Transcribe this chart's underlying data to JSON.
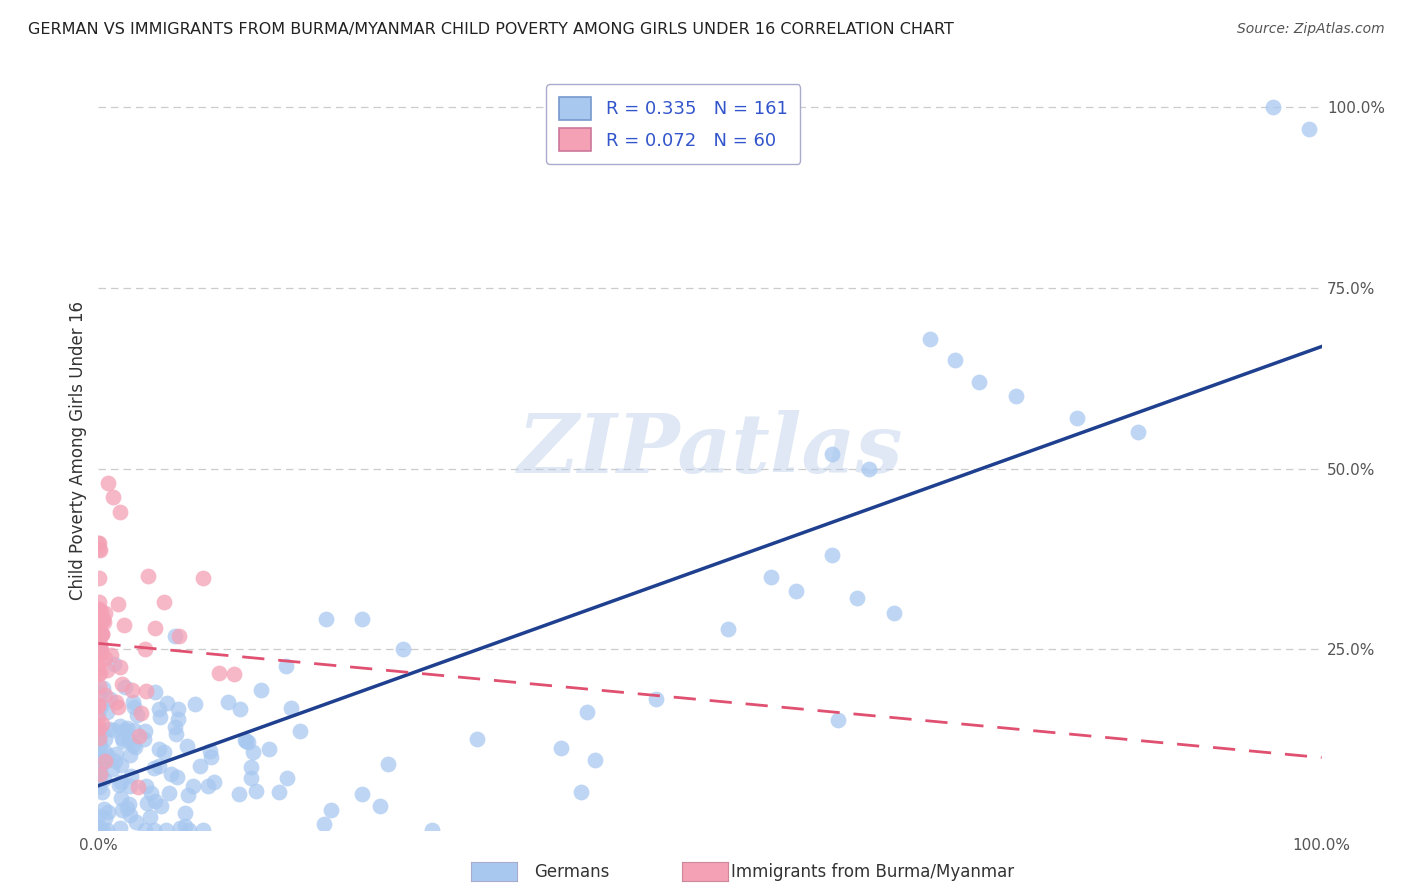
{
  "title": "GERMAN VS IMMIGRANTS FROM BURMA/MYANMAR CHILD POVERTY AMONG GIRLS UNDER 16 CORRELATION CHART",
  "source": "Source: ZipAtlas.com",
  "ylabel": "Child Poverty Among Girls Under 16",
  "series": [
    {
      "name": "Germans",
      "R": 0.335,
      "N": 161,
      "color_scatter": "#a8c8f0",
      "color_line": "#1f3f8f",
      "line_style": "solid"
    },
    {
      "name": "Immigrants from Burma/Myanmar",
      "R": 0.072,
      "N": 60,
      "color_scatter": "#f4a0b5",
      "color_line": "#e05070",
      "line_style": "dashed"
    }
  ],
  "watermark": "ZIPatlas",
  "background_color": "#ffffff",
  "grid_color": "#cccccc",
  "title_color": "#222222",
  "legend_text_color": "#3355cc",
  "legend_N_color": "#cc2222",
  "right_ytick_positions": [
    0.25,
    0.5,
    0.75,
    1.0
  ],
  "right_yticklabels": [
    "25.0%",
    "50.0%",
    "75.0%",
    "100.0%"
  ]
}
